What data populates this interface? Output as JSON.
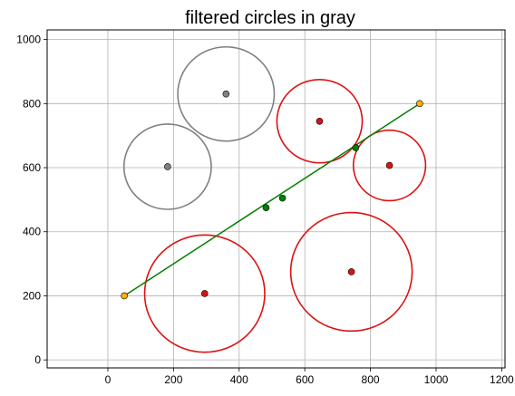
{
  "chart_data": {
    "type": "scatter",
    "title": "filtered circles in gray",
    "xlabel": "",
    "ylabel": "",
    "xlim": [
      -185,
      1210
    ],
    "ylim": [
      -25,
      1030
    ],
    "grid": true,
    "xticks": [
      0,
      200,
      400,
      600,
      800,
      1000,
      1200
    ],
    "yticks": [
      0,
      200,
      400,
      600,
      800,
      1000
    ],
    "circles": [
      {
        "cx": 182,
        "cy": 603,
        "r": 133,
        "status": "filtered",
        "color": "#808080"
      },
      {
        "cx": 360,
        "cy": 830,
        "r": 147,
        "status": "filtered",
        "color": "#808080"
      },
      {
        "cx": 645,
        "cy": 745,
        "r": 130,
        "status": "kept",
        "color": "#dd1111"
      },
      {
        "cx": 858,
        "cy": 607,
        "r": 110,
        "status": "kept",
        "color": "#dd1111"
      },
      {
        "cx": 295,
        "cy": 207,
        "r": 183,
        "status": "kept",
        "color": "#dd1111"
      },
      {
        "cx": 742,
        "cy": 275,
        "r": 185,
        "status": "kept",
        "color": "#dd1111"
      }
    ],
    "segment": {
      "x": [
        50,
        950
      ],
      "y": [
        200,
        800
      ],
      "color": "#008000"
    },
    "endpoints": [
      {
        "x": 50,
        "y": 200,
        "color": "#ffb000"
      },
      {
        "x": 950,
        "y": 800,
        "color": "#ffb000"
      }
    ],
    "intersections": [
      {
        "x": 482,
        "y": 475,
        "color": "#008000"
      },
      {
        "x": 532,
        "y": 505,
        "color": "#008000"
      },
      {
        "x": 755,
        "y": 662,
        "color": "#008000"
      }
    ]
  }
}
